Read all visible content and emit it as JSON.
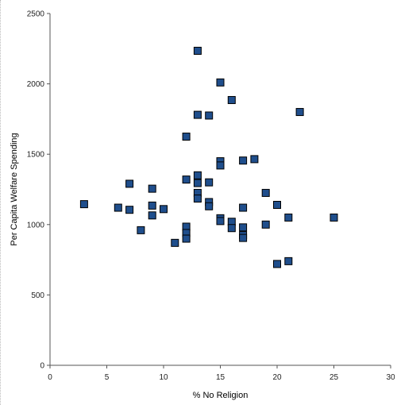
{
  "chart_data": {
    "type": "scatter",
    "title": "",
    "xlabel": "% No Religion",
    "ylabel": "Per Capita Welfare Spending",
    "xlim": [
      0,
      30
    ],
    "ylim": [
      0,
      2500
    ],
    "x_ticks": [
      "0",
      "5",
      "10",
      "15",
      "20",
      "25",
      "30"
    ],
    "y_ticks": [
      "0",
      "500",
      "1000",
      "1500",
      "2000",
      "2500"
    ],
    "grid": false,
    "legend": "none",
    "marker_color": "#1f4e8c",
    "marker_border": "#000000",
    "series": [
      {
        "points": [
          [
            3,
            1145
          ],
          [
            6,
            1120
          ],
          [
            7,
            1290
          ],
          [
            7,
            1105
          ],
          [
            8,
            960
          ],
          [
            9,
            1255
          ],
          [
            9,
            1135
          ],
          [
            9,
            1065
          ],
          [
            10,
            1110
          ],
          [
            11,
            870
          ],
          [
            12,
            1625
          ],
          [
            12,
            1320
          ],
          [
            12,
            985
          ],
          [
            12,
            940
          ],
          [
            12,
            900
          ],
          [
            13,
            2235
          ],
          [
            13,
            1780
          ],
          [
            13,
            1350
          ],
          [
            13,
            1295
          ],
          [
            13,
            1225
          ],
          [
            13,
            1185
          ],
          [
            14,
            1775
          ],
          [
            14,
            1300
          ],
          [
            14,
            1160
          ],
          [
            14,
            1130
          ],
          [
            15,
            2010
          ],
          [
            15,
            1450
          ],
          [
            15,
            1420
          ],
          [
            15,
            1045
          ],
          [
            15,
            1025
          ],
          [
            16,
            1885
          ],
          [
            16,
            1020
          ],
          [
            16,
            975
          ],
          [
            17,
            1455
          ],
          [
            17,
            1120
          ],
          [
            17,
            980
          ],
          [
            17,
            925
          ],
          [
            17,
            905
          ],
          [
            18,
            1465
          ],
          [
            19,
            1225
          ],
          [
            19,
            1000
          ],
          [
            20,
            1140
          ],
          [
            20,
            720
          ],
          [
            21,
            1050
          ],
          [
            21,
            740
          ],
          [
            22,
            1800
          ],
          [
            25,
            1050
          ]
        ]
      }
    ]
  }
}
